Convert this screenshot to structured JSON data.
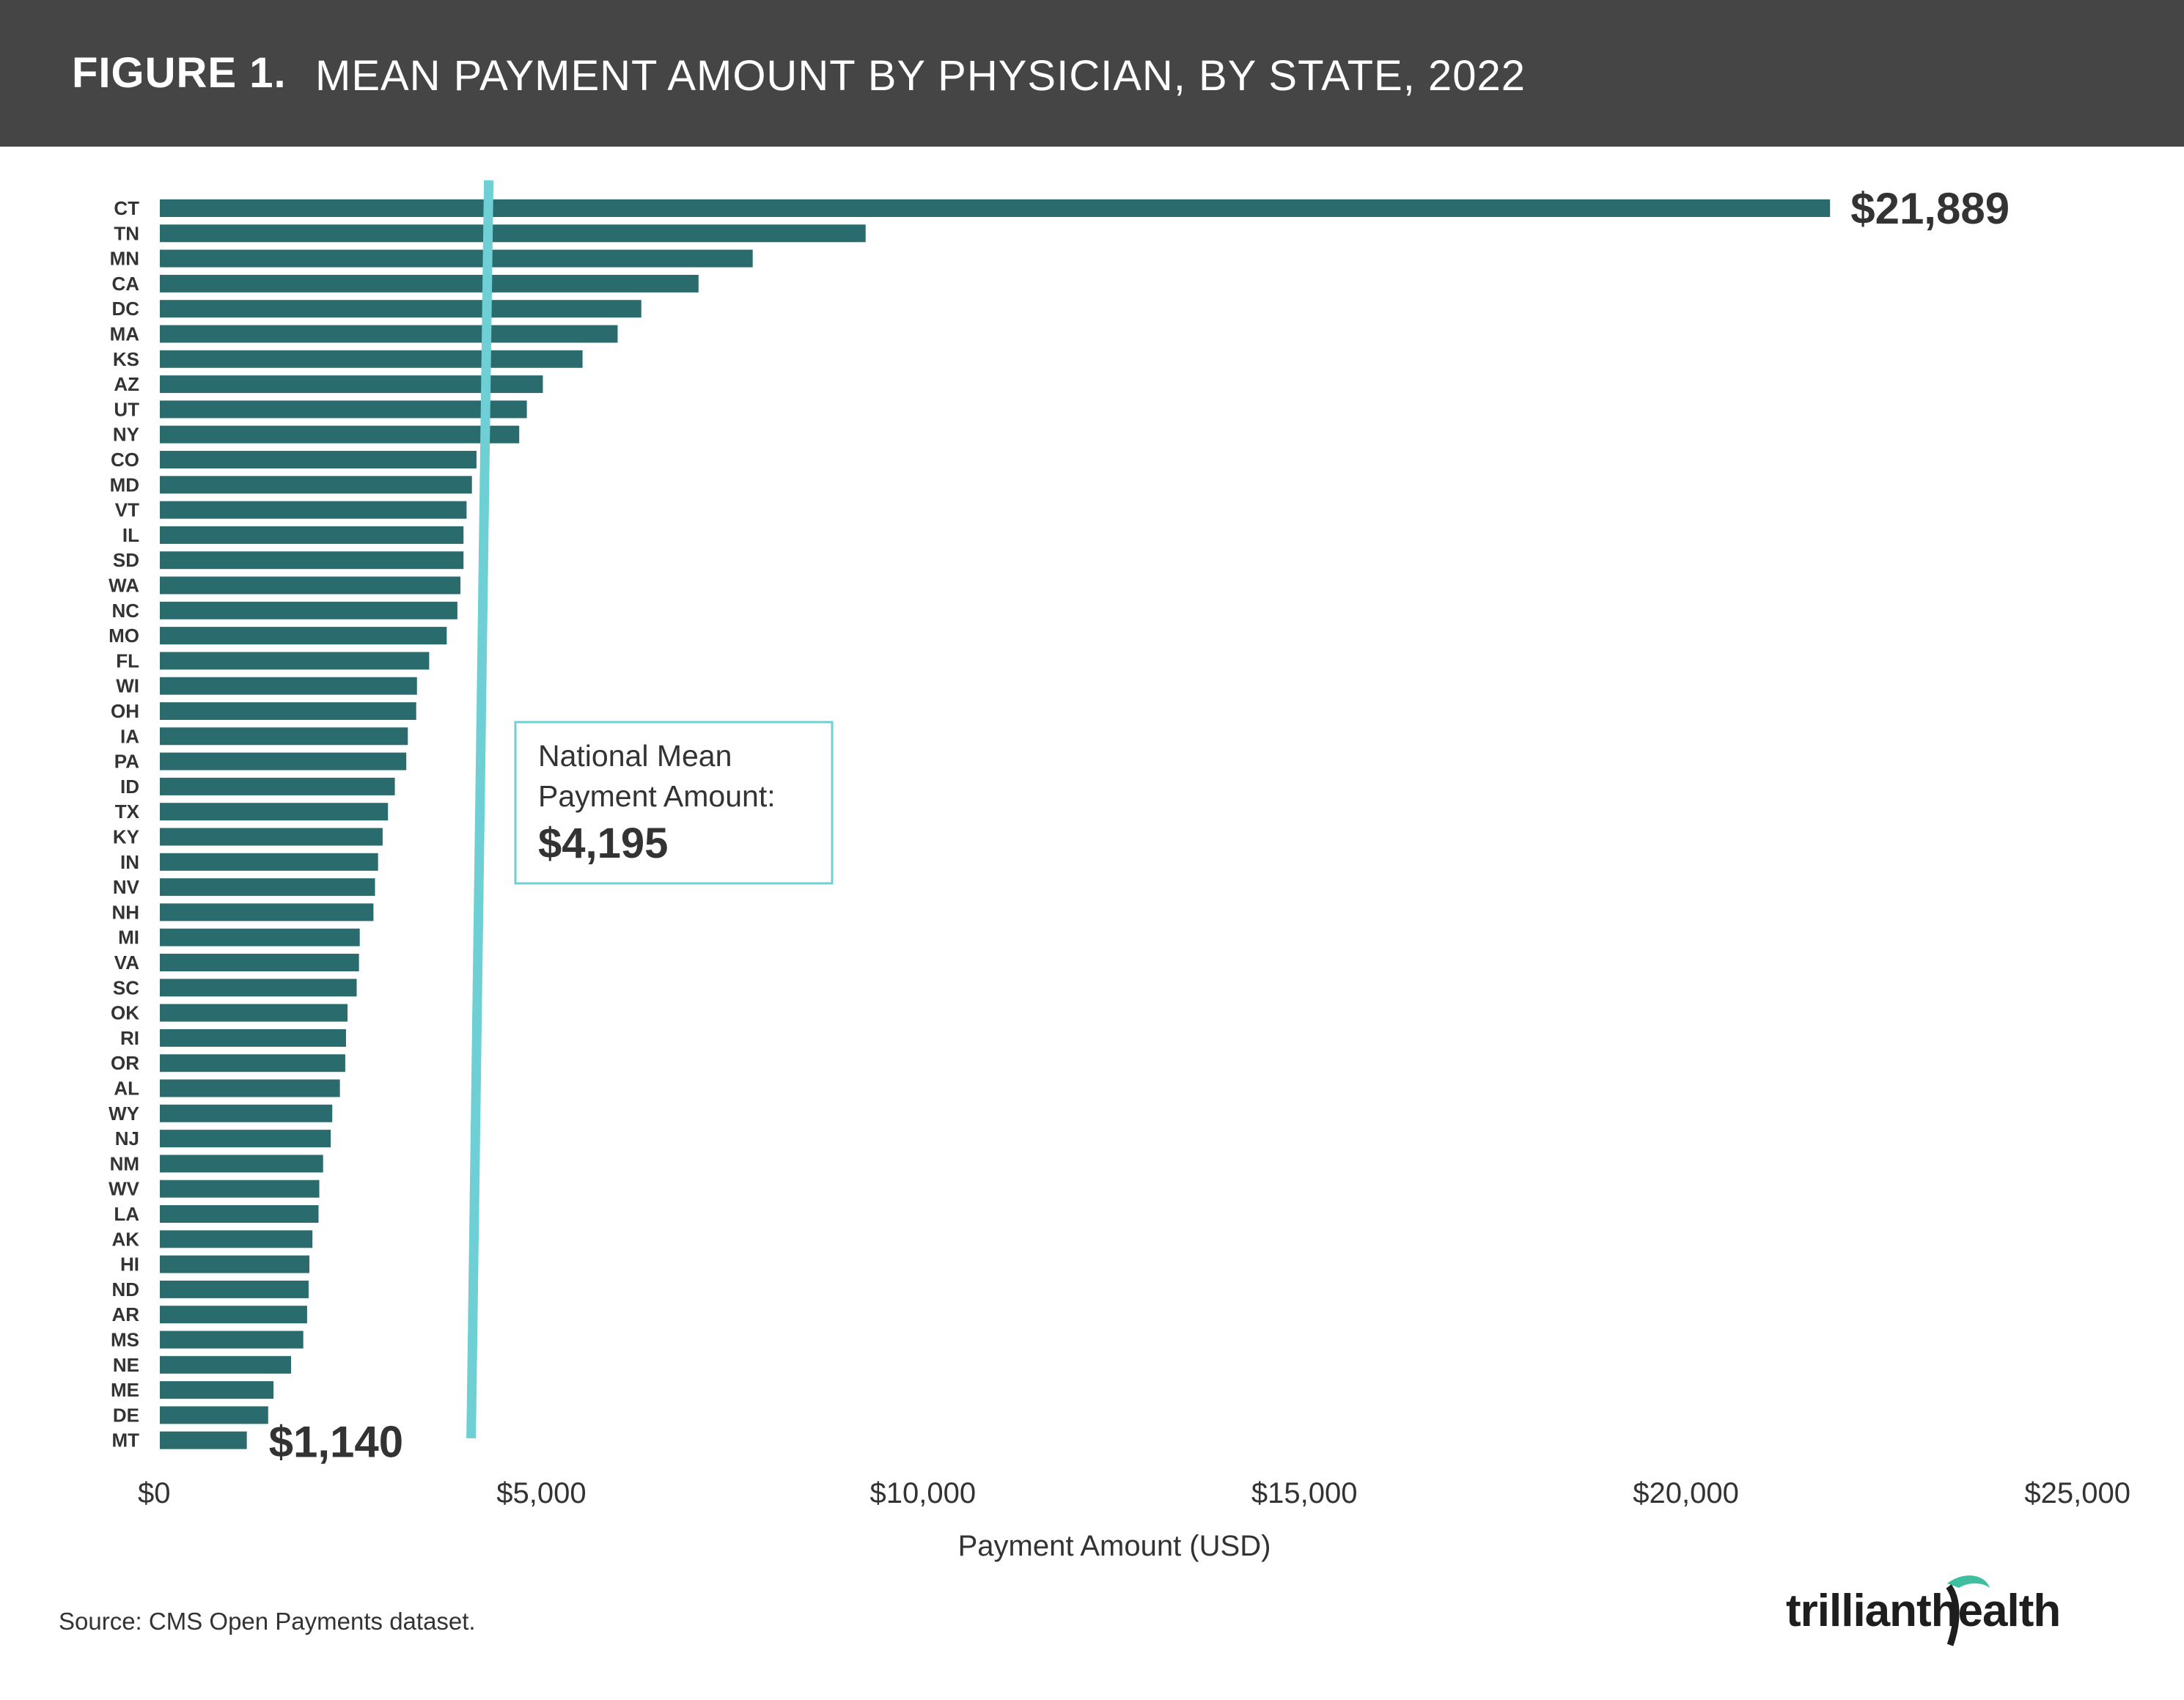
{
  "header": {
    "figure_label": "FIGURE 1.",
    "title": "MEAN PAYMENT AMOUNT BY PHYSICIAN, BY STATE, 2022",
    "background_color": "#454545"
  },
  "chart_data": {
    "type": "bar",
    "orientation": "horizontal",
    "categories": [
      "CT",
      "TN",
      "MN",
      "CA",
      "DC",
      "MA",
      "KS",
      "AZ",
      "UT",
      "NY",
      "CO",
      "MD",
      "VT",
      "IL",
      "SD",
      "WA",
      "NC",
      "MO",
      "FL",
      "WI",
      "OH",
      "IA",
      "PA",
      "ID",
      "TX",
      "KY",
      "IN",
      "NV",
      "NH",
      "MI",
      "VA",
      "SC",
      "OK",
      "RI",
      "OR",
      "AL",
      "WY",
      "NJ",
      "NM",
      "WV",
      "LA",
      "AK",
      "HI",
      "ND",
      "AR",
      "MS",
      "NE",
      "ME",
      "DE",
      "MT"
    ],
    "values": [
      21889,
      9250,
      7770,
      7060,
      6310,
      6000,
      5540,
      5020,
      4810,
      4710,
      4150,
      4090,
      4020,
      3980,
      3980,
      3940,
      3900,
      3760,
      3530,
      3370,
      3360,
      3250,
      3230,
      3080,
      2990,
      2920,
      2860,
      2820,
      2800,
      2620,
      2610,
      2580,
      2460,
      2440,
      2430,
      2360,
      2260,
      2240,
      2140,
      2090,
      2080,
      2000,
      1960,
      1950,
      1930,
      1880,
      1720,
      1490,
      1420,
      1140
    ],
    "value_labels": {
      "first": "$21,889",
      "last": "$1,140"
    },
    "xlabel": "Payment Amount (USD)",
    "xlim": [
      0,
      25000
    ],
    "xticks": [
      0,
      5000,
      10000,
      15000,
      20000,
      25000
    ],
    "xtick_labels": [
      "$0",
      "$5,000",
      "$10,000",
      "$15,000",
      "$20,000",
      "$25,000"
    ],
    "grid": false,
    "legend": "none",
    "bar_color": "#2a6b6d",
    "reference_line": {
      "value": 4195,
      "color": "#6ecfd4",
      "annotation_lines": [
        "National Mean",
        "Payment Amount:"
      ],
      "annotation_value": "$4,195"
    }
  },
  "footer": {
    "source": "Source: CMS Open Payments dataset.",
    "logo_text_left": "trilliant",
    "logo_text_right": "health",
    "logo_leaf_color": "#3fbfa0"
  }
}
